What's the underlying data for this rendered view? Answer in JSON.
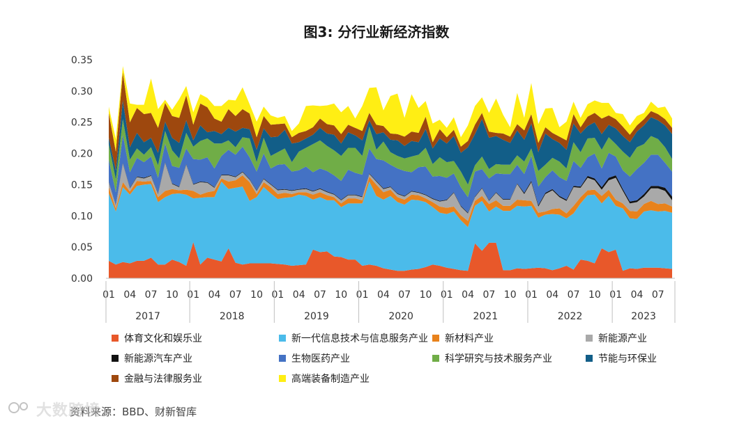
{
  "title": "图3: 分行业新经济指数",
  "source": "资料来源：BBD、财新智库",
  "watermark_text": "大数跨境",
  "chart_data": {
    "type": "area",
    "stacked": true,
    "ylim": [
      0,
      0.35
    ],
    "yticks": [
      "0.00",
      "0.05",
      "0.10",
      "0.15",
      "0.20",
      "0.25",
      "0.30",
      "0.35"
    ],
    "ytick_values": [
      0,
      0.05,
      0.1,
      0.15,
      0.2,
      0.25,
      0.3,
      0.35
    ],
    "month_ticks": [
      "01",
      "04",
      "07",
      "10",
      "01",
      "04",
      "07",
      "10",
      "01",
      "04",
      "07",
      "10",
      "01",
      "04",
      "07",
      "10",
      "01",
      "04",
      "07",
      "10",
      "01",
      "04",
      "07",
      "10",
      "01",
      "04",
      "07"
    ],
    "years": [
      "2017",
      "2018",
      "2019",
      "2020",
      "2021",
      "2022",
      "2023"
    ],
    "x_start": "2017-01",
    "x_end": "2023-07",
    "grid": false,
    "legend_position": "bottom",
    "series": [
      {
        "name": "体育文化和娱乐业",
        "color": "#e8582a",
        "values": [
          0.028,
          0.022,
          0.026,
          0.024,
          0.028,
          0.028,
          0.033,
          0.022,
          0.022,
          0.03,
          0.026,
          0.02,
          0.058,
          0.022,
          0.033,
          0.03,
          0.027,
          0.048,
          0.025,
          0.022,
          0.024,
          0.024,
          0.024,
          0.024,
          0.023,
          0.022,
          0.02,
          0.021,
          0.022,
          0.046,
          0.042,
          0.043,
          0.035,
          0.034,
          0.03,
          0.03,
          0.02,
          0.022,
          0.02,
          0.016,
          0.014,
          0.012,
          0.012,
          0.014,
          0.015,
          0.018,
          0.022,
          0.02,
          0.017,
          0.015,
          0.013,
          0.012,
          0.056,
          0.044,
          0.057,
          0.057,
          0.013,
          0.013,
          0.016,
          0.015,
          0.016,
          0.017,
          0.016,
          0.013,
          0.016,
          0.02,
          0.014,
          0.03,
          0.028,
          0.024,
          0.048,
          0.042,
          0.046,
          0.012,
          0.016,
          0.015,
          0.017,
          0.017,
          0.017,
          0.016,
          0.015
        ]
      },
      {
        "name": "新一代信息技术与信息服务产业",
        "color": "#4bbbea",
        "values": [
          0.108,
          0.085,
          0.12,
          0.11,
          0.12,
          0.122,
          0.118,
          0.1,
          0.108,
          0.105,
          0.11,
          0.114,
          0.07,
          0.107,
          0.097,
          0.1,
          0.128,
          0.095,
          0.12,
          0.125,
          0.1,
          0.106,
          0.122,
          0.112,
          0.104,
          0.107,
          0.11,
          0.113,
          0.11,
          0.08,
          0.088,
          0.082,
          0.09,
          0.08,
          0.09,
          0.09,
          0.1,
          0.133,
          0.112,
          0.11,
          0.118,
          0.11,
          0.106,
          0.112,
          0.11,
          0.104,
          0.092,
          0.085,
          0.086,
          0.092,
          0.08,
          0.07,
          0.06,
          0.08,
          0.05,
          0.058,
          0.095,
          0.095,
          0.1,
          0.1,
          0.1,
          0.08,
          0.086,
          0.09,
          0.086,
          0.076,
          0.09,
          0.09,
          0.105,
          0.11,
          0.072,
          0.09,
          0.07,
          0.1,
          0.08,
          0.08,
          0.09,
          0.092,
          0.09,
          0.092,
          0.09
        ]
      },
      {
        "name": "新材料产业",
        "color": "#e8821c",
        "values": [
          0.01,
          0.005,
          0.008,
          0.005,
          0.008,
          0.005,
          0.005,
          0.008,
          0.01,
          0.008,
          0.005,
          0.008,
          0.012,
          0.005,
          0.008,
          0.01,
          0.005,
          0.012,
          0.012,
          0.018,
          0.03,
          0.005,
          0.008,
          0.01,
          0.008,
          0.008,
          0.005,
          0.004,
          0.006,
          0.008,
          0.008,
          0.008,
          0.005,
          0.006,
          0.008,
          0.008,
          0.005,
          0.008,
          0.018,
          0.012,
          0.01,
          0.008,
          0.008,
          0.008,
          0.008,
          0.006,
          0.008,
          0.01,
          0.01,
          0.008,
          0.008,
          0.01,
          0.008,
          0.008,
          0.012,
          0.01,
          0.008,
          0.008,
          0.01,
          0.01,
          0.008,
          0.008,
          0.005,
          0.008,
          0.01,
          0.008,
          0.012,
          0.01,
          0.008,
          0.008,
          0.012,
          0.01,
          0.01,
          0.008,
          0.012,
          0.012,
          0.012,
          0.015,
          0.012,
          0.012,
          0.01
        ]
      },
      {
        "name": "新能源产业",
        "color": "#a9a9a9",
        "values": [
          0.008,
          0.005,
          0.03,
          0.005,
          0.006,
          0.005,
          0.008,
          0.005,
          0.045,
          0.008,
          0.005,
          0.04,
          0.01,
          0.02,
          0.015,
          0.005,
          0.005,
          0.01,
          0.005,
          0.005,
          0.004,
          0.005,
          0.005,
          0.004,
          0.006,
          0.005,
          0.005,
          0.004,
          0.005,
          0.005,
          0.005,
          0.005,
          0.004,
          0.005,
          0.005,
          0.005,
          0.005,
          0.004,
          0.005,
          0.005,
          0.004,
          0.005,
          0.005,
          0.005,
          0.004,
          0.005,
          0.005,
          0.008,
          0.012,
          0.022,
          0.014,
          0.012,
          0.006,
          0.012,
          0.005,
          0.012,
          0.01,
          0.01,
          0.025,
          0.01,
          0.03,
          0.01,
          0.028,
          0.03,
          0.018,
          0.02,
          0.03,
          0.015,
          0.02,
          0.015,
          0.01,
          0.015,
          0.035,
          0.02,
          0.012,
          0.015,
          0.012,
          0.02,
          0.025,
          0.02,
          0.01
        ]
      },
      {
        "name": "新能源汽车产业",
        "color": "#111111",
        "values": [
          0.001,
          0.001,
          0.001,
          0.001,
          0.001,
          0.001,
          0.001,
          0.001,
          0.001,
          0.001,
          0.001,
          0.001,
          0.001,
          0.001,
          0.001,
          0.001,
          0.001,
          0.001,
          0.001,
          0.001,
          0.001,
          0.001,
          0.001,
          0.001,
          0.001,
          0.001,
          0.001,
          0.001,
          0.001,
          0.001,
          0.001,
          0.001,
          0.001,
          0.001,
          0.001,
          0.001,
          0.001,
          0.001,
          0.001,
          0.001,
          0.001,
          0.001,
          0.001,
          0.001,
          0.001,
          0.001,
          0.001,
          0.001,
          0.001,
          0.001,
          0.001,
          0.001,
          0.001,
          0.001,
          0.001,
          0.001,
          0.001,
          0.001,
          0.001,
          0.002,
          0.002,
          0.002,
          0.002,
          0.002,
          0.002,
          0.002,
          0.002,
          0.002,
          0.003,
          0.003,
          0.004,
          0.004,
          0.004,
          0.003,
          0.003,
          0.003,
          0.004,
          0.004,
          0.004,
          0.005,
          0.006
        ]
      },
      {
        "name": "生物医药产业",
        "color": "#4472c4",
        "values": [
          0.035,
          0.02,
          0.045,
          0.025,
          0.03,
          0.025,
          0.03,
          0.025,
          0.03,
          0.028,
          0.03,
          0.025,
          0.04,
          0.035,
          0.04,
          0.03,
          0.03,
          0.04,
          0.035,
          0.04,
          0.035,
          0.03,
          0.04,
          0.025,
          0.04,
          0.04,
          0.03,
          0.03,
          0.035,
          0.03,
          0.032,
          0.033,
          0.03,
          0.03,
          0.04,
          0.035,
          0.035,
          0.04,
          0.035,
          0.045,
          0.035,
          0.04,
          0.04,
          0.03,
          0.04,
          0.045,
          0.035,
          0.04,
          0.035,
          0.03,
          0.03,
          0.025,
          0.04,
          0.03,
          0.035,
          0.03,
          0.04,
          0.04,
          0.03,
          0.03,
          0.04,
          0.03,
          0.025,
          0.03,
          0.03,
          0.03,
          0.04,
          0.03,
          0.03,
          0.04,
          0.03,
          0.04,
          0.03,
          0.03,
          0.04,
          0.05,
          0.05,
          0.05,
          0.05,
          0.04,
          0.04
        ]
      },
      {
        "name": "科学研究与技术服务产业",
        "color": "#70ad47",
        "values": [
          0.025,
          0.02,
          0.025,
          0.02,
          0.015,
          0.012,
          0.015,
          0.02,
          0.02,
          0.025,
          0.015,
          0.025,
          0.02,
          0.03,
          0.03,
          0.04,
          0.02,
          0.015,
          0.012,
          0.015,
          0.03,
          0.015,
          0.025,
          0.02,
          0.02,
          0.025,
          0.015,
          0.03,
          0.03,
          0.045,
          0.045,
          0.04,
          0.04,
          0.04,
          0.035,
          0.04,
          0.03,
          0.035,
          0.015,
          0.03,
          0.02,
          0.02,
          0.02,
          0.025,
          0.02,
          0.03,
          0.02,
          0.03,
          0.025,
          0.02,
          0.025,
          0.02,
          0.01,
          0.02,
          0.015,
          0.015,
          0.015,
          0.015,
          0.015,
          0.02,
          0.012,
          0.025,
          0.02,
          0.02,
          0.025,
          0.02,
          0.03,
          0.025,
          0.03,
          0.025,
          0.03,
          0.025,
          0.02,
          0.03,
          0.03,
          0.035,
          0.03,
          0.03,
          0.025,
          0.025,
          0.02
        ]
      },
      {
        "name": "节能与环保业",
        "color": "#125e88",
        "values": [
          0.01,
          0.015,
          0.03,
          0.02,
          0.025,
          0.02,
          0.015,
          0.02,
          0.015,
          0.02,
          0.025,
          0.02,
          0.01,
          0.025,
          0.01,
          0.02,
          0.015,
          0.02,
          0.025,
          0.015,
          0.015,
          0.02,
          0.015,
          0.03,
          0.025,
          0.03,
          0.03,
          0.015,
          0.015,
          0.015,
          0.02,
          0.02,
          0.025,
          0.02,
          0.025,
          0.02,
          0.025,
          0.01,
          0.025,
          0.015,
          0.02,
          0.025,
          0.02,
          0.025,
          0.02,
          0.03,
          0.025,
          0.03,
          0.03,
          0.04,
          0.03,
          0.06,
          0.05,
          0.06,
          0.05,
          0.045,
          0.04,
          0.035,
          0.04,
          0.035,
          0.04,
          0.03,
          0.05,
          0.03,
          0.03,
          0.03,
          0.03,
          0.03,
          0.02,
          0.025,
          0.025,
          0.02,
          0.025,
          0.025,
          0.025,
          0.025,
          0.03,
          0.03,
          0.03,
          0.035,
          0.04
        ]
      },
      {
        "name": "金融与法律服务业",
        "color": "#9e480e",
        "values": [
          0.04,
          0.03,
          0.045,
          0.04,
          0.04,
          0.045,
          0.04,
          0.04,
          0.03,
          0.035,
          0.04,
          0.04,
          0.025,
          0.035,
          0.04,
          0.02,
          0.02,
          0.03,
          0.025,
          0.03,
          0.025,
          0.02,
          0.02,
          0.02,
          0.02,
          0.01,
          0.01,
          0.015,
          0.012,
          0.012,
          0.015,
          0.015,
          0.015,
          0.015,
          0.012,
          0.012,
          0.015,
          0.012,
          0.015,
          0.01,
          0.01,
          0.01,
          0.015,
          0.015,
          0.015,
          0.02,
          0.01,
          0.015,
          0.01,
          0.01,
          0.01,
          0.01,
          0.015,
          0.01,
          0.01,
          0.005,
          0.01,
          0.01,
          0.01,
          0.015,
          0.015,
          0.015,
          0.01,
          0.01,
          0.01,
          0.015,
          0.015,
          0.01,
          0.015,
          0.015,
          0.025,
          0.015,
          0.015,
          0.015,
          0.012,
          0.01,
          0.01,
          0.01,
          0.01,
          0.01,
          0.01
        ]
      },
      {
        "name": "高端装备制造产业",
        "color": "#ffee14",
        "values": [
          0.01,
          0.02,
          0.01,
          0.03,
          0.005,
          0.015,
          0.055,
          0.03,
          0.005,
          0.01,
          0.03,
          0.015,
          0.02,
          0.015,
          0.015,
          0.02,
          0.025,
          0.015,
          0.025,
          0.035,
          0.015,
          0.025,
          0.015,
          0.015,
          0.01,
          0.012,
          0.01,
          0.015,
          0.04,
          0.035,
          0.02,
          0.03,
          0.035,
          0.035,
          0.03,
          0.015,
          0.04,
          0.04,
          0.06,
          0.025,
          0.06,
          0.065,
          0.03,
          0.06,
          0.04,
          0.025,
          0.03,
          0.015,
          0.015,
          0.02,
          0.015,
          0.025,
          0.03,
          0.025,
          0.03,
          0.055,
          0.03,
          0.015,
          0.05,
          0.02,
          0.05,
          0.03,
          0.03,
          0.04,
          0.015,
          0.03,
          0.02,
          0.015,
          0.02,
          0.02,
          0.025,
          0.02,
          0.01,
          0.02,
          0.015,
          0.015,
          0.01,
          0.015,
          0.01,
          0.02,
          0.015
        ]
      }
    ]
  }
}
